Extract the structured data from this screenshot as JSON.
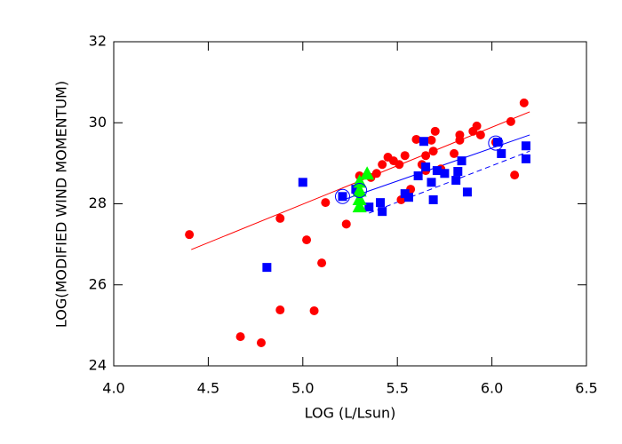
{
  "chart_data": {
    "type": "scatter",
    "x_label": "LOG (L/Lsun)",
    "y_label": "LOG(MODIFIED WIND MOMENTUM)",
    "xlim": [
      4.0,
      6.5
    ],
    "xticks": [
      {
        "value": 4.0,
        "label": "4.0"
      },
      4.5,
      {
        "value": 5.0,
        "label": "5.0"
      },
      5.5,
      {
        "value": 6.0,
        "label": "6.0"
      },
      6.5
    ],
    "ylim": [
      24,
      32
    ],
    "yticks": [
      24,
      26,
      28,
      30,
      32
    ],
    "series": [
      {
        "color": "#ff0000",
        "marker": "circle",
        "x": [
          4.4,
          4.67,
          4.78,
          4.88,
          4.88,
          5.02,
          5.06,
          5.12,
          5.1,
          5.23,
          5.3,
          5.36,
          5.39,
          5.42,
          5.45,
          5.48,
          5.51,
          5.54,
          5.57,
          5.52,
          5.6,
          5.63,
          5.65,
          5.68,
          5.69,
          5.7,
          5.65,
          5.73,
          5.8,
          5.83,
          5.83,
          5.9,
          5.92,
          5.94,
          6.02,
          6.1,
          6.12,
          6.17
        ],
        "values": [
          27.24,
          24.72,
          24.57,
          27.64,
          25.38,
          27.11,
          25.36,
          28.03,
          26.54,
          27.5,
          28.69,
          28.65,
          28.75,
          28.97,
          29.15,
          29.06,
          28.97,
          29.19,
          28.36,
          28.1,
          29.59,
          28.97,
          29.19,
          29.57,
          29.3,
          29.79,
          28.82,
          28.86,
          29.24,
          29.7,
          29.57,
          29.79,
          29.92,
          29.7,
          29.52,
          30.03,
          28.71,
          30.49
        ]
      },
      {
        "color": "#0000ff",
        "marker": "square",
        "x": [
          4.81,
          5.0,
          5.21,
          5.28,
          5.35,
          5.42,
          5.41,
          5.54,
          5.56,
          5.61,
          5.64,
          5.65,
          5.68,
          5.69,
          5.71,
          5.75,
          5.81,
          5.82,
          5.84,
          5.87,
          6.03,
          6.05,
          6.18,
          6.18
        ],
        "values": [
          26.43,
          28.53,
          28.18,
          28.36,
          27.92,
          27.81,
          28.03,
          28.25,
          28.16,
          28.69,
          29.54,
          28.91,
          28.53,
          28.1,
          28.82,
          28.75,
          28.58,
          28.8,
          29.06,
          28.29,
          29.52,
          29.24,
          29.43,
          29.11
        ]
      },
      {
        "color": "#00ff00",
        "marker": "triangle",
        "x": [
          5.34,
          5.3,
          5.3,
          5.3,
          5.3
        ],
        "values": [
          28.73,
          28.53,
          28.31,
          28.1,
          27.92
        ]
      },
      {
        "color": "#0000ff",
        "marker": "ring",
        "x": [
          5.21,
          5.3,
          6.02
        ],
        "values": [
          28.18,
          28.33,
          29.5
        ]
      }
    ],
    "lines": [
      {
        "color": "#ff0000",
        "dash": false,
        "x": [
          4.41,
          6.2
        ],
        "values": [
          26.87,
          30.27
        ]
      },
      {
        "color": "#0000ff",
        "dash": false,
        "x": [
          5.21,
          6.2
        ],
        "values": [
          28.09,
          29.7
        ]
      },
      {
        "color": "#0000ff",
        "dash": true,
        "x": [
          5.35,
          6.2
        ],
        "values": [
          27.77,
          29.3
        ]
      }
    ]
  }
}
